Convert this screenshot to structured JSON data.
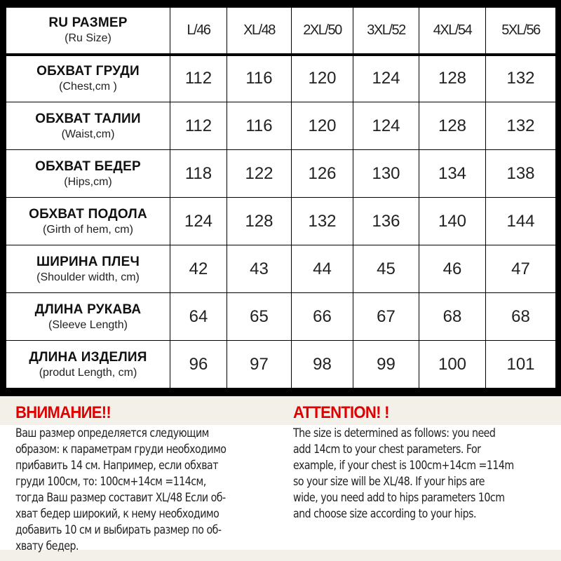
{
  "table": {
    "header": {
      "label": "RU РАЗМЕР",
      "sub": "(Ru Size)",
      "sizes": [
        "L/46",
        "XL/48",
        "2XL/50",
        "3XL/52",
        "4XL/54",
        "5XL/56"
      ]
    },
    "rows": [
      {
        "label": "ОБХВАТ ГРУДИ",
        "sub": "(Chest,cm )",
        "values": [
          "112",
          "116",
          "120",
          "124",
          "128",
          "132"
        ]
      },
      {
        "label": "ОБХВАТ ТАЛИИ",
        "sub": "(Waist,cm)",
        "values": [
          "112",
          "116",
          "120",
          "124",
          "128",
          "132"
        ]
      },
      {
        "label": "ОБХВАТ БЕДЕР",
        "sub": "(Hips,cm)",
        "values": [
          "118",
          "122",
          "126",
          "130",
          "134",
          "138"
        ]
      },
      {
        "label": "ОБХВАТ ПОДОЛА",
        "sub": "(Girth of hem, cm)",
        "values": [
          "124",
          "128",
          "132",
          "136",
          "140",
          "144"
        ]
      },
      {
        "label": "ШИРИНА ПЛЕЧ",
        "sub": "(Shoulder width, cm)",
        "values": [
          "42",
          "43",
          "44",
          "45",
          "46",
          "47"
        ]
      },
      {
        "label": "ДЛИНА РУКАВА",
        "sub": "(Sleeve Length)",
        "values": [
          "64",
          "65",
          "66",
          "67",
          "68",
          "68"
        ]
      },
      {
        "label": "ДЛИНА ИЗДЕЛИЯ",
        "sub": "(produt Length, cm)",
        "values": [
          "96",
          "97",
          "98",
          "99",
          "100",
          "101"
        ]
      }
    ]
  },
  "notes": {
    "ru": {
      "title": "ВНИМАНИЕ!!",
      "text": "Ваш размер определяется следующим\nобразом: к параметрам груди необходимо\nприбавить 14 см. Например, если обхват\nгруди  100см, то: 100см+14см =114см,\nтогда Ваш размер составит XL/48 Если об-\nхват бедер широкий, к нему необходимо\nдобавить 10 см и выбирать размер по об-\nхвату бедер."
    },
    "en": {
      "title": "ATTENTION! !",
      "text": "The size is determined as follows: you need\nadd 14cm to your chest parameters. For\nexample, if your chest is 100cm+14cm =114m\nso your size will be XL/48. If your hips are\nwide, you need add to hips parameters 10cm\nand choose size according to your hips."
    }
  },
  "colors": {
    "accent": "#e00000",
    "background": "#000000",
    "note_bg": "#f3f0ea"
  }
}
